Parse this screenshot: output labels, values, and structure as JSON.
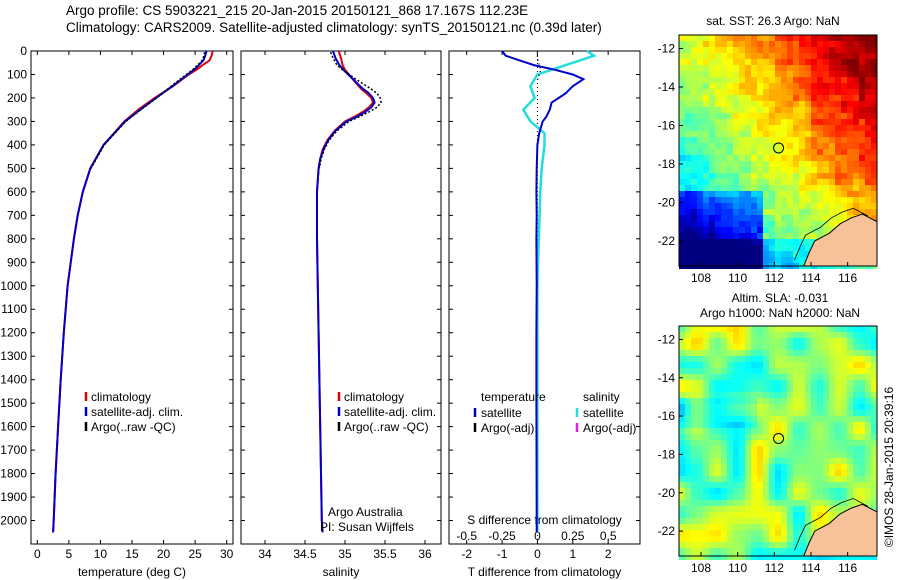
{
  "header": {
    "line1": "Argo profile: CS 5903221_215 20-Jan-2015 20150121_868 17.167S 112.23E",
    "line2": "Climatology: CARS2009. Satellite-adjusted climatology: synTS_20150121.nc (0.39d later)"
  },
  "colors": {
    "climatology": "#e00000",
    "satellite": "#0000cc",
    "argo": "#000000",
    "salinity_satellite": "#22dddd",
    "salinity_argo": "#dd22dd",
    "land": "#f7c29a"
  },
  "chart_data": [
    {
      "name": "temperature-profile",
      "type": "line",
      "xlabel": "temperature (deg C)",
      "ylabel": "",
      "xlim": [
        -1,
        31
      ],
      "ylim": [
        0,
        2100
      ],
      "xticks": [
        "0",
        "5",
        "10",
        "15",
        "20",
        "25",
        "30"
      ],
      "yticks": [
        "0",
        "100",
        "200",
        "300",
        "400",
        "500",
        "600",
        "700",
        "800",
        "900",
        "1000",
        "1100",
        "1200",
        "1300",
        "1400",
        "1500",
        "1600",
        "1700",
        "1800",
        "1900",
        "2000"
      ],
      "legend": [
        "climatology",
        "satellite-adj. clim.",
        "Argo(..raw -QC)"
      ],
      "series": [
        {
          "name": "climatology",
          "depth": [
            0,
            20,
            40,
            60,
            80,
            100,
            150,
            200,
            250,
            300,
            400,
            500,
            600,
            700,
            800,
            1000,
            1200,
            1400,
            1600,
            1800,
            2000,
            2050
          ],
          "values": [
            27.8,
            27.6,
            27.3,
            26.2,
            25.2,
            24.0,
            21.5,
            18.6,
            16.0,
            13.8,
            10.5,
            8.4,
            7.2,
            6.4,
            5.8,
            4.8,
            4.2,
            3.7,
            3.3,
            2.9,
            2.6,
            2.5
          ]
        },
        {
          "name": "satellite-adj. clim.",
          "depth": [
            0,
            20,
            40,
            60,
            80,
            100,
            150,
            200,
            250,
            300,
            400,
            500,
            600,
            700,
            800,
            1000,
            1200,
            1400,
            1600,
            1800,
            2000,
            2050
          ],
          "values": [
            26.8,
            26.6,
            26.3,
            25.6,
            24.8,
            23.8,
            21.4,
            18.8,
            16.3,
            13.9,
            10.5,
            8.4,
            7.2,
            6.4,
            5.8,
            4.8,
            4.2,
            3.7,
            3.3,
            2.9,
            2.6,
            2.5
          ]
        },
        {
          "name": "Argo(..raw -QC)",
          "depth": [
            5,
            20,
            40,
            60,
            80,
            100,
            150,
            200,
            250,
            300,
            400,
            500
          ],
          "values": [
            26.5,
            26.4,
            26.1,
            25.4,
            24.6,
            23.6,
            21.2,
            18.9,
            16.4,
            14.0,
            10.6,
            8.5
          ]
        }
      ]
    },
    {
      "name": "salinity-profile",
      "type": "line",
      "xlabel": "salinity",
      "ylabel": "",
      "xlim": [
        33.7,
        36.2
      ],
      "ylim": [
        0,
        2100
      ],
      "xticks": [
        "34",
        "34.5",
        "35",
        "35.5",
        "36"
      ],
      "legend": [
        "climatology",
        "satellite-adj. clim.",
        "Argo(..raw -QC)"
      ],
      "annotations": [
        "Argo Australia",
        "PI: Susan Wijffels"
      ],
      "series": [
        {
          "name": "climatology",
          "depth": [
            0,
            30,
            60,
            80,
            100,
            130,
            160,
            180,
            200,
            220,
            240,
            260,
            280,
            300,
            340,
            380,
            420,
            460,
            500,
            550,
            600,
            700,
            800,
            1000,
            1200,
            1400,
            1600,
            1800,
            2000,
            2050
          ],
          "values": [
            34.92,
            34.95,
            34.97,
            35.0,
            35.05,
            35.12,
            35.2,
            35.27,
            35.33,
            35.35,
            35.3,
            35.22,
            35.12,
            35.0,
            34.87,
            34.78,
            34.72,
            34.69,
            34.67,
            34.66,
            34.65,
            34.65,
            34.65,
            34.66,
            34.67,
            34.68,
            34.69,
            34.7,
            34.71,
            34.72
          ]
        },
        {
          "name": "satellite-adj. clim.",
          "depth": [
            0,
            30,
            60,
            80,
            100,
            130,
            160,
            180,
            200,
            220,
            240,
            260,
            280,
            300,
            340,
            380,
            420,
            460,
            500,
            550,
            600,
            700,
            800,
            1000,
            1200,
            1400,
            1600,
            1800,
            2000,
            2050
          ],
          "values": [
            34.85,
            34.88,
            34.93,
            34.98,
            35.04,
            35.13,
            35.22,
            35.3,
            35.35,
            35.37,
            35.33,
            35.25,
            35.15,
            35.02,
            34.88,
            34.79,
            34.73,
            34.69,
            34.67,
            34.66,
            34.65,
            34.65,
            34.65,
            34.66,
            34.67,
            34.68,
            34.69,
            34.7,
            34.71,
            34.72
          ]
        },
        {
          "name": "Argo(..raw -QC)",
          "depth": [
            5,
            30,
            60,
            80,
            100,
            130,
            160,
            180,
            200,
            220,
            240,
            260,
            280,
            300,
            340,
            380,
            420,
            460,
            500
          ],
          "values": [
            34.82,
            34.85,
            34.9,
            34.97,
            35.05,
            35.18,
            35.32,
            35.4,
            35.44,
            35.45,
            35.4,
            35.3,
            35.18,
            35.05,
            34.9,
            34.8,
            34.74,
            34.7,
            34.68
          ]
        }
      ]
    },
    {
      "name": "difference-profile",
      "type": "line",
      "xlabel_top": "S difference from climatology",
      "xlabel": "T difference from climatology",
      "xlim": [
        -2.5,
        2.9
      ],
      "ylim": [
        0,
        2100
      ],
      "top_ticks": [
        "-0.5",
        "-0.25",
        "0",
        "0.25",
        "0.5"
      ],
      "xticks": [
        "-2",
        "-1",
        "0",
        "1",
        "2"
      ],
      "legend_left_title": "temperature",
      "legend_left": [
        "satellite",
        "Argo(-adj)"
      ],
      "legend_right_title": "salinity",
      "legend_right": [
        "satellite",
        "Argo(-adj)"
      ],
      "series": [
        {
          "name": "temperature satellite",
          "depth": [
            0,
            20,
            40,
            60,
            80,
            100,
            120,
            150,
            180,
            200,
            220,
            250,
            280,
            300,
            350,
            400,
            500,
            600,
            700,
            800,
            1000,
            1200,
            1500,
            2000,
            2050
          ],
          "values": [
            -1.0,
            -0.9,
            -0.5,
            -0.1,
            0.5,
            1.0,
            1.3,
            1.0,
            0.8,
            0.6,
            0.4,
            0.35,
            0.25,
            0.15,
            0.05,
            0.0,
            -0.02,
            -0.03,
            -0.02,
            -0.03,
            -0.02,
            -0.03,
            -0.03,
            -0.02,
            -0.02
          ]
        },
        {
          "name": "salinity satellite",
          "depth": [
            0,
            20,
            40,
            60,
            80,
            100,
            150,
            200,
            250,
            300,
            350,
            400,
            500,
            600,
            800,
            1000,
            1500,
            2000,
            2050
          ],
          "values": [
            0.35,
            0.4,
            0.3,
            0.2,
            0.1,
            0.0,
            -0.05,
            -0.02,
            -0.1,
            -0.05,
            0.05,
            0.05,
            0.03,
            0.02,
            0.01,
            0.0,
            0.0,
            0.0,
            0.0
          ]
        },
        {
          "name": "temperature Argo(-adj)",
          "depth": [
            20,
            40,
            60,
            80,
            100,
            120
          ],
          "values": [
            0.0,
            0.02,
            0.05,
            0.1,
            0.05,
            0.02
          ]
        }
      ]
    },
    {
      "name": "sst-map",
      "type": "heatmap",
      "title": "sat. SST: 26.3 Argo: NaN",
      "xticks": [
        "108",
        "110",
        "112",
        "114",
        "116"
      ],
      "yticks": [
        "-12",
        "-14",
        "-16",
        "-18",
        "-20",
        "-22"
      ],
      "xlim": [
        106.8,
        117.6
      ],
      "ylim": [
        -23.3,
        -11.3
      ],
      "marker": {
        "lon": 112.23,
        "lat": -17.167
      }
    },
    {
      "name": "sla-map",
      "type": "heatmap",
      "title": "Altim. SLA: -0.031",
      "subtitle": "Argo h1000: NaN h2000: NaN",
      "xticks": [
        "108",
        "110",
        "112",
        "114",
        "116"
      ],
      "yticks": [
        "-12",
        "-14",
        "-16",
        "-18",
        "-20",
        "-22"
      ],
      "xlim": [
        106.8,
        117.6
      ],
      "ylim": [
        -23.3,
        -11.3
      ],
      "marker": {
        "lon": 112.23,
        "lat": -17.167
      }
    }
  ],
  "sidebar": {
    "stamp": "©IMOS 28-Jan-2015 20:39:16"
  }
}
